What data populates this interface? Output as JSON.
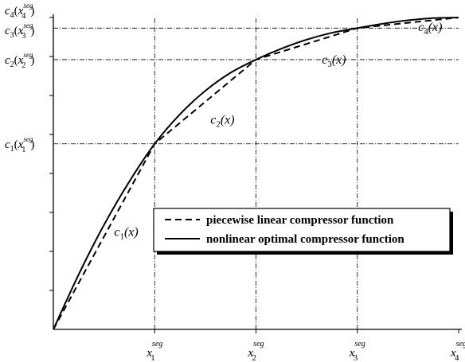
{
  "chart_data": {
    "type": "line",
    "title": "",
    "xlabel": "",
    "ylabel": "",
    "xlim": [
      0,
      4
    ],
    "ylim": [
      0,
      1
    ],
    "grid": false,
    "legend_placement": "center-right",
    "x_ticks": [
      {
        "value": 1,
        "base": "x",
        "sub": "1",
        "sup": "seg"
      },
      {
        "value": 2,
        "base": "x",
        "sub": "2",
        "sup": "seg"
      },
      {
        "value": 3,
        "base": "x",
        "sub": "3",
        "sup": "seg"
      },
      {
        "value": 4,
        "base": "x",
        "sub": "4",
        "sup": "seg"
      }
    ],
    "y_ticks": [
      {
        "value": 0.595,
        "base": "c",
        "idx": "1",
        "arg": "x",
        "sub": "1",
        "sup": "seg"
      },
      {
        "value": 0.865,
        "base": "c",
        "idx": "2",
        "arg": "x",
        "sub": "2",
        "sup": "seg"
      },
      {
        "value": 0.966,
        "base": "c",
        "idx": "3",
        "arg": "x",
        "sub": "3",
        "sup": "seg"
      },
      {
        "value": 1.0,
        "base": "c",
        "idx": "4",
        "arg": "x",
        "sub": "4",
        "sup": "seg"
      }
    ],
    "series": [
      {
        "name": "piecewise linear compressor function",
        "style": "dashed",
        "x": [
          0,
          1,
          2,
          3,
          4
        ],
        "y": [
          0,
          0.595,
          0.865,
          0.966,
          1.0
        ]
      },
      {
        "name": "nonlinear optimal compressor function",
        "style": "solid",
        "x": [
          0,
          0.25,
          0.5,
          0.75,
          1,
          1.25,
          1.5,
          1.75,
          2,
          2.25,
          2.5,
          2.75,
          3,
          3.25,
          3.5,
          3.75,
          4
        ],
        "y": [
          0,
          0.176,
          0.335,
          0.474,
          0.595,
          0.69,
          0.765,
          0.823,
          0.865,
          0.9,
          0.929,
          0.951,
          0.966,
          0.98,
          0.991,
          0.998,
          1.0
        ]
      }
    ],
    "annotations": [
      {
        "text_base": "c",
        "idx": "1",
        "arg": "(x)",
        "x": 0.6,
        "y": 0.3
      },
      {
        "text_base": "c",
        "idx": "2",
        "arg": "(x)",
        "x": 1.55,
        "y": 0.66
      },
      {
        "text_base": "c",
        "idx": "3",
        "arg": "(x)",
        "x": 2.65,
        "y": 0.852
      },
      {
        "text_base": "c",
        "idx": "4",
        "arg": "(x)",
        "x": 3.6,
        "y": 0.957
      }
    ],
    "legend": [
      {
        "label": "piecewise linear compressor function",
        "style": "dashed"
      },
      {
        "label": "nonlinear optimal compressor function",
        "style": "solid"
      }
    ]
  }
}
